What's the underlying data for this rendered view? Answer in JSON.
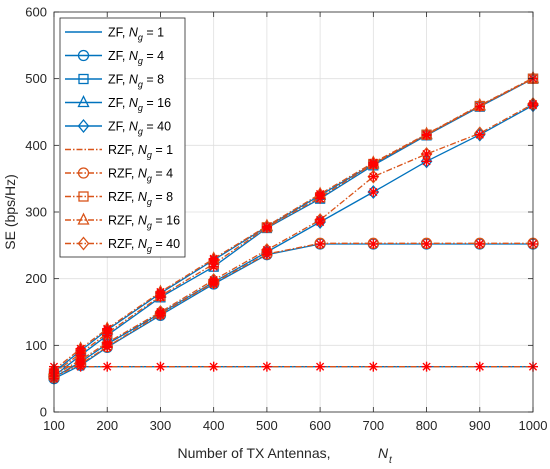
{
  "chart_data": {
    "type": "line",
    "xlabel": "Number of TX Antennas,",
    "xlabel_symbol": "N",
    "xlabel_subscript": "t",
    "ylabel": "SE (bps/Hz)",
    "xlim": [
      100,
      1000
    ],
    "ylim": [
      0,
      600
    ],
    "x_ticks": [
      100,
      200,
      300,
      400,
      500,
      600,
      700,
      800,
      900,
      1000
    ],
    "y_ticks": [
      0,
      100,
      200,
      300,
      400,
      500,
      600
    ],
    "grid": true,
    "legend_position": "top-left",
    "x": [
      100,
      150,
      200,
      300,
      400,
      500,
      600,
      700,
      800,
      900,
      1000
    ],
    "overlay_marker": "red-asterisk",
    "series": [
      {
        "name": "ZF,  N_g = 1",
        "scheme": "ZF",
        "ng": "1",
        "marker": "none",
        "values": [
          68,
          68,
          68,
          68,
          68,
          68,
          68,
          68,
          68,
          68,
          68
        ]
      },
      {
        "name": "ZF,  N_g = 4",
        "scheme": "ZF",
        "ng": "4",
        "marker": "circle",
        "values": [
          50,
          70,
          97,
          145,
          192,
          236,
          252,
          252,
          252,
          252,
          252
        ]
      },
      {
        "name": "ZF,  N_g = 8",
        "scheme": "ZF",
        "ng": "8",
        "marker": "square",
        "values": [
          54,
          85,
          115,
          172,
          218,
          276,
          320,
          370,
          415,
          458,
          500
        ]
      },
      {
        "name": "ZF,  N_g = 16",
        "scheme": "ZF",
        "ng": "16",
        "marker": "triangle",
        "values": [
          60,
          92,
          123,
          178,
          228,
          278,
          325,
          372,
          416,
          459,
          500
        ]
      },
      {
        "name": "ZF,  N_g = 40",
        "scheme": "ZF",
        "ng": "40",
        "marker": "diamond",
        "values": [
          52,
          75,
          102,
          148,
          195,
          240,
          285,
          330,
          376,
          416,
          460
        ]
      },
      {
        "name": "RZF,  N_g = 1",
        "scheme": "RZF",
        "ng": "1",
        "marker": "none",
        "values": [
          68,
          68,
          68,
          68,
          68,
          68,
          68,
          68,
          68,
          68,
          68
        ]
      },
      {
        "name": "RZF,  N_g = 4",
        "scheme": "RZF",
        "ng": "4",
        "marker": "circle",
        "values": [
          52,
          72,
          98,
          147,
          194,
          237,
          253,
          253,
          253,
          253,
          253
        ]
      },
      {
        "name": "RZF,  N_g = 8",
        "scheme": "RZF",
        "ng": "8",
        "marker": "square",
        "values": [
          58,
          88,
          118,
          174,
          222,
          277,
          322,
          372,
          416,
          459,
          500
        ]
      },
      {
        "name": "RZF,  N_g = 16",
        "scheme": "RZF",
        "ng": "16",
        "marker": "triangle",
        "values": [
          63,
          95,
          125,
          180,
          230,
          279,
          327,
          374,
          417,
          460,
          501
        ]
      },
      {
        "name": "RZF,  N_g = 40",
        "scheme": "RZF",
        "ng": "40",
        "marker": "diamond",
        "values": [
          55,
          78,
          104,
          150,
          198,
          243,
          288,
          353,
          387,
          418,
          462
        ]
      }
    ],
    "colors": {
      "ZF": "#0072BD",
      "RZF": "#D95319",
      "overlay": "#FF0000",
      "grid": "#DFDFDF",
      "axis": "#262626"
    }
  }
}
